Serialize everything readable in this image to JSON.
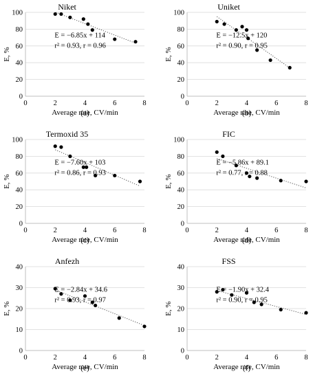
{
  "chart_data": [
    {
      "type": "scatter",
      "panel_label": "(a)",
      "title": "Niket",
      "xlabel": "Average rate, CV/min",
      "ylabel": "E, %",
      "xlim": [
        0,
        8
      ],
      "ylim": [
        0,
        100
      ],
      "xticks": [
        "0",
        "2",
        "4",
        "6",
        "8"
      ],
      "yticks": [
        "0",
        "20",
        "40",
        "60",
        "80",
        "100"
      ],
      "points": [
        [
          2.0,
          98
        ],
        [
          2.4,
          98
        ],
        [
          3.0,
          94
        ],
        [
          3.9,
          92
        ],
        [
          4.2,
          86
        ],
        [
          4.5,
          79
        ],
        [
          6.0,
          68
        ],
        [
          7.4,
          65
        ]
      ],
      "trendline": {
        "slope": -6.85,
        "intercept": 114
      },
      "annotation": [
        "E = −6.85x + 114",
        "r² = 0.93, r = 0.96"
      ]
    },
    {
      "type": "scatter",
      "panel_label": "(b)",
      "title": "Uniket",
      "xlabel": "Average rate, CV/min",
      "ylabel": "E, %",
      "xlim": [
        0,
        8
      ],
      "ylim": [
        0,
        100
      ],
      "xticks": [
        "0",
        "2",
        "4",
        "6",
        "8"
      ],
      "yticks": [
        "0",
        "20",
        "40",
        "60",
        "80",
        "100"
      ],
      "points": [
        [
          2.0,
          89
        ],
        [
          2.5,
          86
        ],
        [
          3.3,
          79
        ],
        [
          3.7,
          83
        ],
        [
          4.0,
          79
        ],
        [
          4.1,
          69
        ],
        [
          4.7,
          55
        ],
        [
          5.6,
          43
        ],
        [
          6.9,
          34
        ]
      ],
      "trendline": {
        "slope": -12.5,
        "intercept": 120
      },
      "annotation": [
        "E = −12.5x + 120",
        "r² = 0.90, r = 0.95"
      ]
    },
    {
      "type": "scatter",
      "panel_label": "(c)",
      "title": "Termoxid 35",
      "xlabel": "Average rate, CV/min",
      "ylabel": "E, %",
      "xlim": [
        0,
        8
      ],
      "ylim": [
        0,
        100
      ],
      "xticks": [
        "0",
        "2",
        "4",
        "6",
        "8"
      ],
      "yticks": [
        "0",
        "20",
        "40",
        "60",
        "80",
        "100"
      ],
      "points": [
        [
          2.0,
          92
        ],
        [
          2.4,
          91
        ],
        [
          3.0,
          80
        ],
        [
          3.9,
          67
        ],
        [
          4.1,
          67
        ],
        [
          4.7,
          57
        ],
        [
          6.0,
          57
        ],
        [
          7.7,
          50
        ]
      ],
      "trendline": {
        "slope": -7.6,
        "intercept": 103
      },
      "annotation": [
        "E = −7.60x + 103",
        "r² = 0.86, r = 0.93"
      ]
    },
    {
      "type": "scatter",
      "panel_label": "(d)",
      "title": "FIC",
      "xlabel": "Average rate, CV/min",
      "ylabel": "E, %",
      "xlim": [
        0,
        8
      ],
      "ylim": [
        0,
        100
      ],
      "xticks": [
        "0",
        "2",
        "4",
        "6",
        "8"
      ],
      "yticks": [
        "0",
        "20",
        "40",
        "60",
        "80",
        "100"
      ],
      "points": [
        [
          2.0,
          85
        ],
        [
          2.4,
          80
        ],
        [
          3.3,
          69
        ],
        [
          4.0,
          60
        ],
        [
          4.2,
          56
        ],
        [
          4.7,
          54
        ],
        [
          6.3,
          51
        ],
        [
          8.0,
          50
        ]
      ],
      "trendline": {
        "slope": -5.86,
        "intercept": 89.1
      },
      "annotation": [
        "E = −5.86x + 89.1",
        "r² = 0.77, r = 0.88"
      ]
    },
    {
      "type": "scatter",
      "panel_label": "(e)",
      "title": "Anfezh",
      "xlabel": "Average rate, CV/min",
      "ylabel": "E, %",
      "xlim": [
        0,
        8
      ],
      "ylim": [
        0,
        40
      ],
      "xticks": [
        "0",
        "2",
        "4",
        "6",
        "8"
      ],
      "yticks": [
        "0",
        "10",
        "20",
        "30",
        "40"
      ],
      "points": [
        [
          2.0,
          29.5
        ],
        [
          2.4,
          27
        ],
        [
          3.0,
          24
        ],
        [
          4.0,
          26
        ],
        [
          4.5,
          23
        ],
        [
          4.7,
          21.5
        ],
        [
          6.3,
          15.5
        ],
        [
          8.0,
          11.5
        ]
      ],
      "trendline": {
        "slope": -2.84,
        "intercept": 34.6
      },
      "annotation": [
        "E = −2.84x + 34.6",
        "r² = 0.93, r = 0.97"
      ]
    },
    {
      "type": "scatter",
      "panel_label": "(f)",
      "title": "FSS",
      "xlabel": "Average rate, CV/min",
      "ylabel": "E, %",
      "xlim": [
        0,
        8
      ],
      "ylim": [
        0,
        40
      ],
      "xticks": [
        "0",
        "2",
        "4",
        "6",
        "8"
      ],
      "yticks": [
        "0",
        "10",
        "20",
        "30",
        "40"
      ],
      "points": [
        [
          2.0,
          28
        ],
        [
          2.4,
          29
        ],
        [
          3.0,
          26.5
        ],
        [
          4.0,
          27.5
        ],
        [
          4.5,
          23
        ],
        [
          5.0,
          22
        ],
        [
          6.3,
          19.5
        ],
        [
          8.0,
          18
        ]
      ],
      "trendline": {
        "slope": -1.9,
        "intercept": 32.4
      },
      "annotation": [
        "E = −1.90x + 32.4",
        "r² = 0.90, r = 0.95"
      ]
    }
  ]
}
